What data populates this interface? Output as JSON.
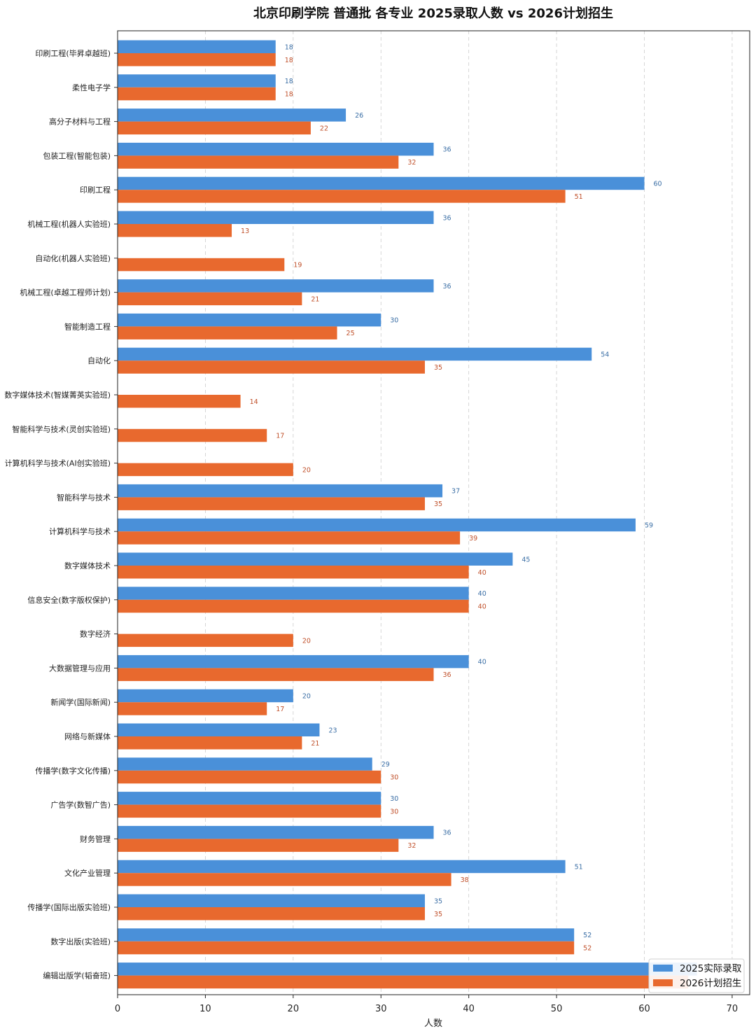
{
  "chart_data": {
    "type": "bar",
    "orientation": "horizontal",
    "title": "北京印刷学院 普通批 各专业 2025录取人数 vs 2026计划招生",
    "xlabel": "人数",
    "ylabel": "",
    "xlim": [
      0,
      72
    ],
    "xticks": [
      0,
      10,
      20,
      30,
      40,
      50,
      60,
      70
    ],
    "grid": "vertical-dashed",
    "legend_position": "bottom-right",
    "categories": [
      "印刷工程(毕昇卓越班)",
      "柔性电子学",
      "高分子材料与工程",
      "包装工程(智能包装)",
      "印刷工程",
      "机械工程(机器人实验班)",
      "自动化(机器人实验班)",
      "机械工程(卓越工程师计划)",
      "智能制造工程",
      "自动化",
      "数字媒体技术(智媒菁英实验班)",
      "智能科学与技术(灵创实验班)",
      "计算机科学与技术(AI创实验班)",
      "智能科学与技术",
      "计算机科学与技术",
      "数字媒体技术",
      "信息安全(数字版权保护)",
      "数字经济",
      "大数据管理与应用",
      "新闻学(国际新闻)",
      "网络与新媒体",
      "传播学(数字文化传播)",
      "广告学(数智广告)",
      "财务管理",
      "文化产业管理",
      "传播学(国际出版实验班)",
      "数字出版(实验班)",
      "编辑出版学(韬奋班)"
    ],
    "series": [
      {
        "name": "2025实际录取",
        "color": "#4a90d9",
        "label_color": "#3a6ea5",
        "values": [
          18,
          18,
          26,
          36,
          60,
          36,
          null,
          36,
          30,
          54,
          null,
          null,
          null,
          37,
          59,
          45,
          40,
          null,
          40,
          20,
          23,
          29,
          30,
          36,
          51,
          35,
          52,
          66
        ]
      },
      {
        "name": "2026计划招生",
        "color": "#e8692e",
        "label_color": "#c0502a",
        "values": [
          18,
          18,
          22,
          32,
          51,
          13,
          19,
          21,
          25,
          35,
          14,
          17,
          20,
          35,
          39,
          40,
          40,
          20,
          36,
          17,
          21,
          30,
          30,
          32,
          38,
          35,
          52,
          65
        ]
      }
    ]
  }
}
